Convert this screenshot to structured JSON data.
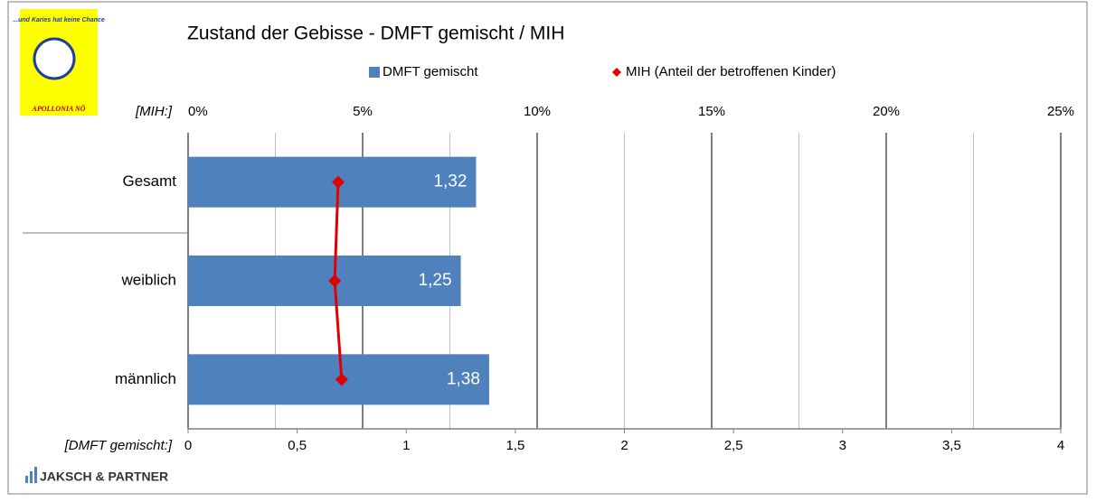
{
  "logo_top": "...und Karies hat keine Chance",
  "logo_bottom": "APOLLONIA NÖ",
  "footer": "JAKSCH & PARTNER",
  "chart_data": {
    "type": "bar",
    "orientation": "horizontal",
    "title": "Zustand der Gebisse - DMFT gemischt / MIH",
    "xlabel": "[DMFT gemischt:]",
    "x2label": "[MIH:]",
    "categories": [
      "Gesamt",
      "weiblich",
      "männlich"
    ],
    "series": [
      {
        "name": "DMFT gemischt",
        "type": "bar",
        "color": "#4f81bd",
        "values": [
          1.32,
          1.25,
          1.38
        ],
        "value_labels": [
          "1,32",
          "1,25",
          "1,38"
        ]
      },
      {
        "name": "MIH (Anteil der betroffenen Kinder)",
        "type": "line",
        "axis": "x2",
        "color": "#e00000",
        "values": [
          4.3,
          4.2,
          4.4
        ]
      }
    ],
    "xlim": [
      0,
      4
    ],
    "xticks": [
      0,
      {
        "value": 0.5,
        "label": "0,5"
      },
      1,
      {
        "value": 1.5,
        "label": "1,5"
      },
      2,
      {
        "value": 2.5,
        "label": "2,5"
      },
      3,
      {
        "value": 3.5,
        "label": "3,5"
      },
      4
    ],
    "x2lim": [
      0,
      25
    ],
    "x2ticks": [
      {
        "value": 0,
        "label": "0%"
      },
      {
        "value": 5,
        "label": "5%"
      },
      {
        "value": 10,
        "label": "10%"
      },
      {
        "value": 15,
        "label": "15%"
      },
      {
        "value": 20,
        "label": "20%"
      },
      {
        "value": 25,
        "label": "25%"
      }
    ],
    "x2minorticks": [
      2.5,
      7.5,
      12.5,
      17.5,
      22.5
    ],
    "grid": true
  }
}
